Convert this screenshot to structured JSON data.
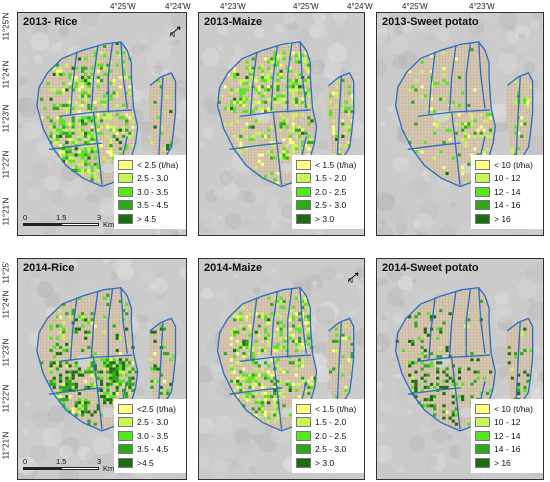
{
  "top_longitudes": [
    "4°25'W",
    "4°24'W",
    "4°23'W"
  ],
  "left_latitudes_top": [
    "11°25'N",
    "11°24'N",
    "11°23'N",
    "11°22'N",
    "11°21'N"
  ],
  "left_latitudes_bottom": [
    "11°25'",
    "11°24'N",
    "11°23'N",
    "11°22'N",
    "11°21'N"
  ],
  "north_label": "N",
  "scale": {
    "zero": "0",
    "mid": "1.5",
    "end": "3",
    "unit": "Km"
  },
  "panels": [
    {
      "title": "2013- Rice",
      "legend": [
        "< 2.5  (t/ha)",
        "2.5 - 3.0",
        "3.0 - 3.5",
        "3.5 - 4.5",
        "> 4.5"
      ],
      "north": true,
      "scale": true
    },
    {
      "title": "2013-Maize",
      "legend": [
        "< 1.5  (t/ha)",
        "1.5 - 2.0",
        "2.0 - 2.5",
        "2.5 - 3.0",
        "> 3.0"
      ],
      "north": false,
      "scale": false
    },
    {
      "title": "2013-Sweet potato",
      "legend": [
        "< 10  (t/ha)",
        "10 - 12",
        "12 - 14",
        "14 - 16",
        "> 16"
      ],
      "north": false,
      "scale": false
    },
    {
      "title": "2014-Rice",
      "legend": [
        "<2.5  (t/ha)",
        "2.5 - 3.0",
        "3.0 - 3.5",
        "3.5 - 4.5",
        ">4.5"
      ],
      "north": false,
      "scale": true
    },
    {
      "title": "2014-Maize",
      "legend": [
        "< 1.5  (t/ha)",
        "1.5 - 2.0",
        "2.0 - 2.5",
        "2.5 - 3.0",
        "> 3.0"
      ],
      "north": true,
      "scale": false
    },
    {
      "title": "2014-Sweet potato",
      "legend": [
        "< 10  (t/ha)",
        "10 - 12",
        "12 - 14",
        "14 - 16",
        "> 16"
      ],
      "north": false,
      "scale": false
    }
  ],
  "legend_colors": [
    "#ffff80",
    "#c8f55a",
    "#55e61e",
    "#2ea81a",
    "#1a6e10"
  ]
}
